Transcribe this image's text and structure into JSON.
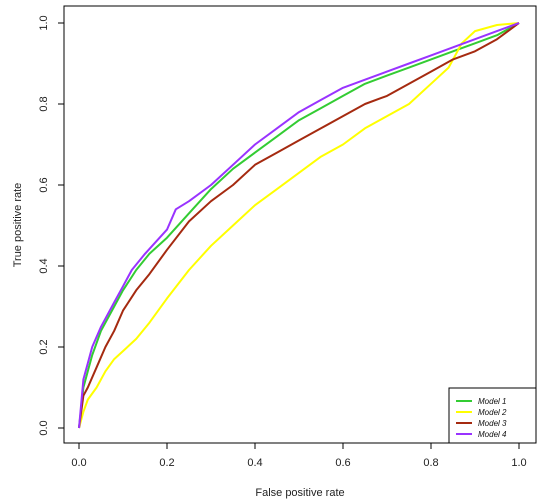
{
  "chart_data": {
    "type": "line",
    "title": "",
    "xlabel": "False positive rate",
    "ylabel": "True positive rate",
    "xlim": [
      0,
      1
    ],
    "ylim": [
      0,
      1
    ],
    "x_ticks": [
      "0.0",
      "0.2",
      "0.4",
      "0.6",
      "0.8",
      "1.0"
    ],
    "y_ticks": [
      "0.0",
      "0.2",
      "0.4",
      "0.6",
      "0.8",
      "1.0"
    ],
    "grid": false,
    "legend_position": "bottom-right",
    "series": [
      {
        "name": "Model 1",
        "color": "#33cc33",
        "points": [
          [
            0,
            0
          ],
          [
            0.01,
            0.1
          ],
          [
            0.02,
            0.14
          ],
          [
            0.03,
            0.18
          ],
          [
            0.05,
            0.24
          ],
          [
            0.08,
            0.3
          ],
          [
            0.1,
            0.34
          ],
          [
            0.13,
            0.39
          ],
          [
            0.16,
            0.43
          ],
          [
            0.2,
            0.47
          ],
          [
            0.25,
            0.53
          ],
          [
            0.3,
            0.59
          ],
          [
            0.35,
            0.64
          ],
          [
            0.4,
            0.68
          ],
          [
            0.45,
            0.72
          ],
          [
            0.5,
            0.76
          ],
          [
            0.55,
            0.79
          ],
          [
            0.6,
            0.82
          ],
          [
            0.65,
            0.85
          ],
          [
            0.7,
            0.87
          ],
          [
            0.75,
            0.89
          ],
          [
            0.8,
            0.91
          ],
          [
            0.85,
            0.93
          ],
          [
            0.9,
            0.95
          ],
          [
            0.95,
            0.97
          ],
          [
            1,
            1
          ]
        ]
      },
      {
        "name": "Model 2",
        "color": "#ffff00",
        "points": [
          [
            0,
            0
          ],
          [
            0.01,
            0.04
          ],
          [
            0.02,
            0.07
          ],
          [
            0.04,
            0.1
          ],
          [
            0.06,
            0.14
          ],
          [
            0.08,
            0.17
          ],
          [
            0.1,
            0.19
          ],
          [
            0.13,
            0.22
          ],
          [
            0.16,
            0.26
          ],
          [
            0.2,
            0.32
          ],
          [
            0.25,
            0.39
          ],
          [
            0.3,
            0.45
          ],
          [
            0.35,
            0.5
          ],
          [
            0.4,
            0.55
          ],
          [
            0.45,
            0.59
          ],
          [
            0.5,
            0.63
          ],
          [
            0.55,
            0.67
          ],
          [
            0.6,
            0.7
          ],
          [
            0.65,
            0.74
          ],
          [
            0.7,
            0.77
          ],
          [
            0.75,
            0.8
          ],
          [
            0.8,
            0.85
          ],
          [
            0.84,
            0.89
          ],
          [
            0.87,
            0.95
          ],
          [
            0.9,
            0.98
          ],
          [
            0.95,
            0.995
          ],
          [
            1,
            1
          ]
        ]
      },
      {
        "name": "Model 3",
        "color": "#a52a10",
        "points": [
          [
            0,
            0
          ],
          [
            0.01,
            0.08
          ],
          [
            0.02,
            0.1
          ],
          [
            0.04,
            0.15
          ],
          [
            0.06,
            0.2
          ],
          [
            0.08,
            0.24
          ],
          [
            0.1,
            0.29
          ],
          [
            0.13,
            0.34
          ],
          [
            0.16,
            0.38
          ],
          [
            0.2,
            0.44
          ],
          [
            0.25,
            0.51
          ],
          [
            0.3,
            0.56
          ],
          [
            0.35,
            0.6
          ],
          [
            0.4,
            0.65
          ],
          [
            0.45,
            0.68
          ],
          [
            0.5,
            0.71
          ],
          [
            0.55,
            0.74
          ],
          [
            0.6,
            0.77
          ],
          [
            0.65,
            0.8
          ],
          [
            0.7,
            0.82
          ],
          [
            0.75,
            0.85
          ],
          [
            0.8,
            0.88
          ],
          [
            0.85,
            0.91
          ],
          [
            0.9,
            0.93
          ],
          [
            0.95,
            0.96
          ],
          [
            1,
            1
          ]
        ]
      },
      {
        "name": "Model 4",
        "color": "#9933ff",
        "points": [
          [
            0,
            0
          ],
          [
            0.01,
            0.12
          ],
          [
            0.02,
            0.16
          ],
          [
            0.03,
            0.2
          ],
          [
            0.05,
            0.25
          ],
          [
            0.08,
            0.31
          ],
          [
            0.1,
            0.35
          ],
          [
            0.12,
            0.39
          ],
          [
            0.15,
            0.43
          ],
          [
            0.2,
            0.49
          ],
          [
            0.22,
            0.54
          ],
          [
            0.25,
            0.56
          ],
          [
            0.3,
            0.6
          ],
          [
            0.35,
            0.65
          ],
          [
            0.4,
            0.7
          ],
          [
            0.45,
            0.74
          ],
          [
            0.5,
            0.78
          ],
          [
            0.55,
            0.81
          ],
          [
            0.6,
            0.84
          ],
          [
            0.65,
            0.86
          ],
          [
            0.7,
            0.88
          ],
          [
            0.75,
            0.9
          ],
          [
            0.8,
            0.92
          ],
          [
            0.85,
            0.94
          ],
          [
            0.9,
            0.96
          ],
          [
            0.95,
            0.98
          ],
          [
            1,
            1
          ]
        ]
      }
    ]
  }
}
